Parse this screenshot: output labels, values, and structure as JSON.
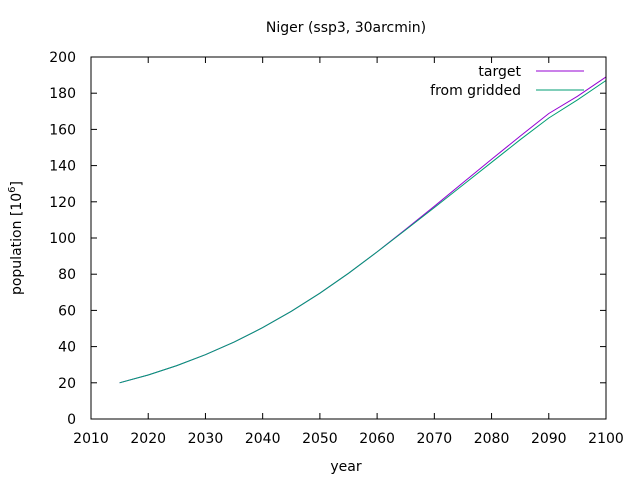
{
  "chart_data": {
    "type": "line",
    "title": "Niger (ssp3, 30arcmin)",
    "xlabel": "year",
    "ylabel_main": "population [10",
    "ylabel_exp": "6",
    "ylabel_close": "]",
    "xlim": [
      2010,
      2100
    ],
    "ylim": [
      0,
      200
    ],
    "xticks": [
      2010,
      2020,
      2030,
      2040,
      2050,
      2060,
      2070,
      2080,
      2090,
      2100
    ],
    "yticks": [
      0,
      20,
      40,
      60,
      80,
      100,
      120,
      140,
      160,
      180,
      200
    ],
    "grid": false,
    "legend_position": "top-right",
    "series": [
      {
        "name": "target",
        "color": "#9400d3",
        "x": [
          2015,
          2020,
          2025,
          2030,
          2035,
          2040,
          2045,
          2050,
          2055,
          2060,
          2065,
          2070,
          2075,
          2080,
          2085,
          2090,
          2095,
          2100
        ],
        "y": [
          20,
          24.3,
          29.5,
          35.5,
          42.5,
          50.5,
          59.5,
          69.5,
          80.5,
          92.3,
          104.8,
          117.5,
          130.5,
          143.5,
          156.3,
          168.8,
          178.3,
          189
        ]
      },
      {
        "name": "from gridded",
        "color": "#009e73",
        "x": [
          2015,
          2020,
          2025,
          2030,
          2035,
          2040,
          2045,
          2050,
          2055,
          2060,
          2065,
          2070,
          2075,
          2080,
          2085,
          2090,
          2095,
          2100
        ],
        "y": [
          20,
          24.3,
          29.5,
          35.5,
          42.5,
          50.5,
          59.5,
          69.5,
          80.5,
          92.3,
          104.5,
          116.8,
          129.3,
          141.8,
          154.3,
          166.3,
          176.3,
          187
        ]
      }
    ]
  }
}
